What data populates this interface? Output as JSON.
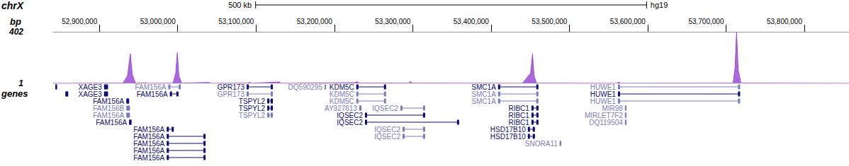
{
  "chart_data": {
    "type": "genome_browser",
    "chromosome": "chrX",
    "assembly": "hg19",
    "scale_bar": {
      "label": "500 kb",
      "length": 500000
    },
    "xlim": [
      52841000,
      53857000
    ],
    "xticks": [
      {
        "value": 52900000,
        "label": "52,900,000"
      },
      {
        "value": 53000000,
        "label": "53,000,000"
      },
      {
        "value": 53100000,
        "label": "53,100,000"
      },
      {
        "value": 53200000,
        "label": "53,200,000"
      },
      {
        "value": 53300000,
        "label": "53,300,000"
      },
      {
        "value": 53400000,
        "label": "53,400,000"
      },
      {
        "value": 53500000,
        "label": "53,500,000"
      },
      {
        "value": 53600000,
        "label": "53,600,000"
      },
      {
        "value": 53700000,
        "label": "53,700,000"
      },
      {
        "value": 53800000,
        "label": "53,800,000"
      }
    ],
    "signal": {
      "label": "bp",
      "color": "#9a4fd6",
      "ylim": [
        1,
        402
      ],
      "yticks": [
        1,
        402
      ],
      "points": [
        [
          52841000,
          1
        ],
        [
          52930000,
          2
        ],
        [
          52936000,
          60
        ],
        [
          52939500,
          232
        ],
        [
          52942000,
          70
        ],
        [
          52946000,
          2
        ],
        [
          52960000,
          4
        ],
        [
          52962000,
          1
        ],
        [
          52994000,
          2
        ],
        [
          52997500,
          80
        ],
        [
          52999500,
          240
        ],
        [
          53001500,
          60
        ],
        [
          53005000,
          2
        ],
        [
          53040000,
          8
        ],
        [
          53042000,
          1
        ],
        [
          53090000,
          2
        ],
        [
          53092000,
          10
        ],
        [
          53094000,
          1
        ],
        [
          53130000,
          12
        ],
        [
          53132000,
          1
        ],
        [
          53226000,
          6
        ],
        [
          53229000,
          14
        ],
        [
          53232000,
          2
        ],
        [
          53295000,
          2
        ],
        [
          53297000,
          16
        ],
        [
          53299000,
          2
        ],
        [
          53440000,
          1
        ],
        [
          53450500,
          80
        ],
        [
          53453000,
          230
        ],
        [
          53455000,
          60
        ],
        [
          53458000,
          2
        ],
        [
          53560000,
          1
        ],
        [
          53563000,
          10
        ],
        [
          53566000,
          1
        ],
        [
          53709000,
          2
        ],
        [
          53711500,
          120
        ],
        [
          53713500,
          400
        ],
        [
          53715500,
          110
        ],
        [
          53719000,
          2
        ],
        [
          53857000,
          1
        ]
      ]
    },
    "genes": {
      "label": "genes",
      "rows": [
        [
          {
            "start": 52844000,
            "end": 52845000,
            "color": "#0c0c78"
          },
          {
            "name": "XAGE3",
            "start": 52906000,
            "end": 52911000,
            "color": "#0c0c78"
          },
          {
            "name": "FAM156A",
            "start": 52988000,
            "end": 53004000,
            "color": "#7c7cc0"
          },
          {
            "name": "GPR173",
            "start": 53088000,
            "end": 53121500,
            "color": "#0c0c78"
          },
          {
            "name": "DQ590295",
            "start": 53187500,
            "end": 53188500,
            "color": "#7c7cc0"
          },
          {
            "name": "KDM5C",
            "start": 53228000,
            "end": 53266000,
            "color": "#0c0c78"
          },
          {
            "name": "SMC1A",
            "start": 53409000,
            "end": 53460500,
            "color": "#0c0c78"
          },
          {
            "name": "HUWE1",
            "start": 53562000,
            "end": 53718000,
            "color": "#7c7cc0"
          }
        ],
        [
          {
            "start": 52856600,
            "end": 52860200,
            "color": "#0c0c78"
          },
          {
            "name": "XAGE3",
            "start": 52906000,
            "end": 52911000,
            "color": "#0c0c78"
          },
          {
            "name": "FAM156A",
            "start": 52990000,
            "end": 53001000,
            "color": "#0c0c78"
          },
          {
            "name": "GPR173",
            "start": 53088000,
            "end": 53121500,
            "color": "#7c7cc0"
          },
          {
            "name": "KDM5C",
            "start": 53228000,
            "end": 53266000,
            "color": "#7c7cc0"
          },
          {
            "name": "SMC1A",
            "start": 53409000,
            "end": 53460500,
            "color": "#7c7cc0"
          },
          {
            "name": "HUWE1",
            "start": 53562000,
            "end": 53718000,
            "color": "#0c0c78"
          }
        ],
        [
          {
            "name": "FAM156A",
            "start": 52934400,
            "end": 52938000,
            "color": "#0c0c78"
          },
          {
            "name": "TSPYL2",
            "start": 53114300,
            "end": 53121500,
            "color": "#0c0c78"
          },
          {
            "name": "KDM5C",
            "start": 53228000,
            "end": 53266000,
            "color": "#7c7cc0"
          },
          {
            "name": "SMC1A",
            "start": 53409000,
            "end": 53460500,
            "color": "#7c7cc0"
          },
          {
            "name": "HUWE1",
            "start": 53562000,
            "end": 53718000,
            "color": "#7c7cc0"
          }
        ],
        [
          {
            "name": "FAM156B",
            "start": 52934400,
            "end": 52939000,
            "color": "#7c7cc0"
          },
          {
            "name": "TSPYL2",
            "start": 53114300,
            "end": 53121500,
            "color": "#0c0c78"
          },
          {
            "name": "AY927613",
            "start": 53231800,
            "end": 53234500,
            "color": "#7c7cc0"
          },
          {
            "name": "IQSEC2",
            "start": 53284300,
            "end": 53315900,
            "color": "#7c7cc0"
          },
          {
            "name": "RIBC1",
            "start": 53451600,
            "end": 53460600,
            "color": "#0c0c78"
          },
          {
            "name": "MIR98",
            "start": 53571000,
            "end": 53572000,
            "color": "#7c7cc0"
          }
        ],
        [
          {
            "name": "FAM156A",
            "start": 52934400,
            "end": 52939000,
            "color": "#7c7cc0"
          },
          {
            "name": "TSPYL2",
            "start": 53114300,
            "end": 53121500,
            "color": "#7c7cc0"
          },
          {
            "name": "IQSEC2",
            "start": 53239100,
            "end": 53315900,
            "color": "#0c0c78"
          },
          {
            "name": "RIBC1",
            "start": 53451600,
            "end": 53460600,
            "color": "#0c0c78"
          },
          {
            "name": "MIRLET7F2",
            "start": 53571000,
            "end": 53572000,
            "color": "#7c7cc0"
          }
        ],
        [
          {
            "name": "FAM156A",
            "start": 52938000,
            "end": 52941000,
            "color": "#0c0c78"
          },
          {
            "name": "IQSEC2",
            "start": 53239100,
            "end": 53359300,
            "color": "#0c0c78"
          },
          {
            "name": "RIBC1",
            "start": 53451600,
            "end": 53460600,
            "color": "#0c0c78"
          },
          {
            "name": "DQ119504",
            "start": 53571000,
            "end": 53573000,
            "color": "#7c7cc0"
          }
        ],
        [
          {
            "name": "FAM156A",
            "start": 52986000,
            "end": 52995000,
            "color": "#0c0c78"
          },
          {
            "name": "IQSEC2",
            "start": 53287000,
            "end": 53315900,
            "color": "#7c7cc0"
          },
          {
            "name": "HSD17B10",
            "start": 53447000,
            "end": 53456000,
            "color": "#0c0c78"
          }
        ],
        [
          {
            "name": "FAM156A",
            "start": 52986000,
            "end": 53035600,
            "color": "#0c0c78"
          },
          {
            "name": "IQSEC2",
            "start": 53287000,
            "end": 53315900,
            "color": "#7c7cc0"
          },
          {
            "name": "HSD17B10",
            "start": 53447000,
            "end": 53456000,
            "color": "#0c0c78"
          }
        ],
        [
          {
            "name": "FAM156A",
            "start": 52986000,
            "end": 53035600,
            "color": "#0c0c78"
          },
          {
            "name": "SNORA11",
            "start": 53487700,
            "end": 53488700,
            "color": "#7c7cc0"
          }
        ],
        [
          {
            "name": "FAM156A",
            "start": 52986000,
            "end": 53035600,
            "color": "#0c0c78"
          }
        ],
        [
          {
            "name": "FAM156A",
            "start": 52986000,
            "end": 53035600,
            "color": "#0c0c78"
          }
        ]
      ]
    }
  }
}
